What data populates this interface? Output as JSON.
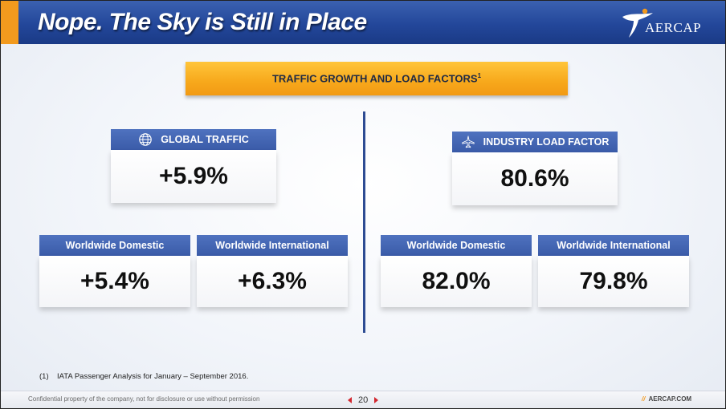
{
  "header": {
    "title": "Nope. The Sky is Still in Place",
    "logo_text": "AERCAP"
  },
  "section": {
    "title": "TRAFFIC GROWTH AND LOAD FACTORS",
    "note_marker": "1"
  },
  "global_traffic": {
    "label": "GLOBAL TRAFFIC",
    "icon": "globe-icon",
    "value": "+5.9%",
    "domestic": {
      "label": "Worldwide Domestic",
      "value": "+5.4%"
    },
    "international": {
      "label": "Worldwide International",
      "value": "+6.3%"
    }
  },
  "load_factor": {
    "label": "INDUSTRY LOAD FACTOR",
    "icon": "airplane-icon",
    "value": "80.6%",
    "domestic": {
      "label": "Worldwide Domestic",
      "value": "82.0%"
    },
    "international": {
      "label": "Worldwide International",
      "value": "79.8%"
    }
  },
  "footnote": {
    "number": "(1)",
    "text": "IATA Passenger Analysis for January – September 2016."
  },
  "footer": {
    "confidential": "Confidential property of the company, not for disclosure or use without permission",
    "page_number": "20",
    "site_prefix": "//",
    "site": "AERCAP.COM"
  },
  "colors": {
    "header_blue": "#23479a",
    "accent_orange": "#f29a1e",
    "card_header_blue": "#3a5ba8",
    "nav_red": "#d2262e"
  }
}
